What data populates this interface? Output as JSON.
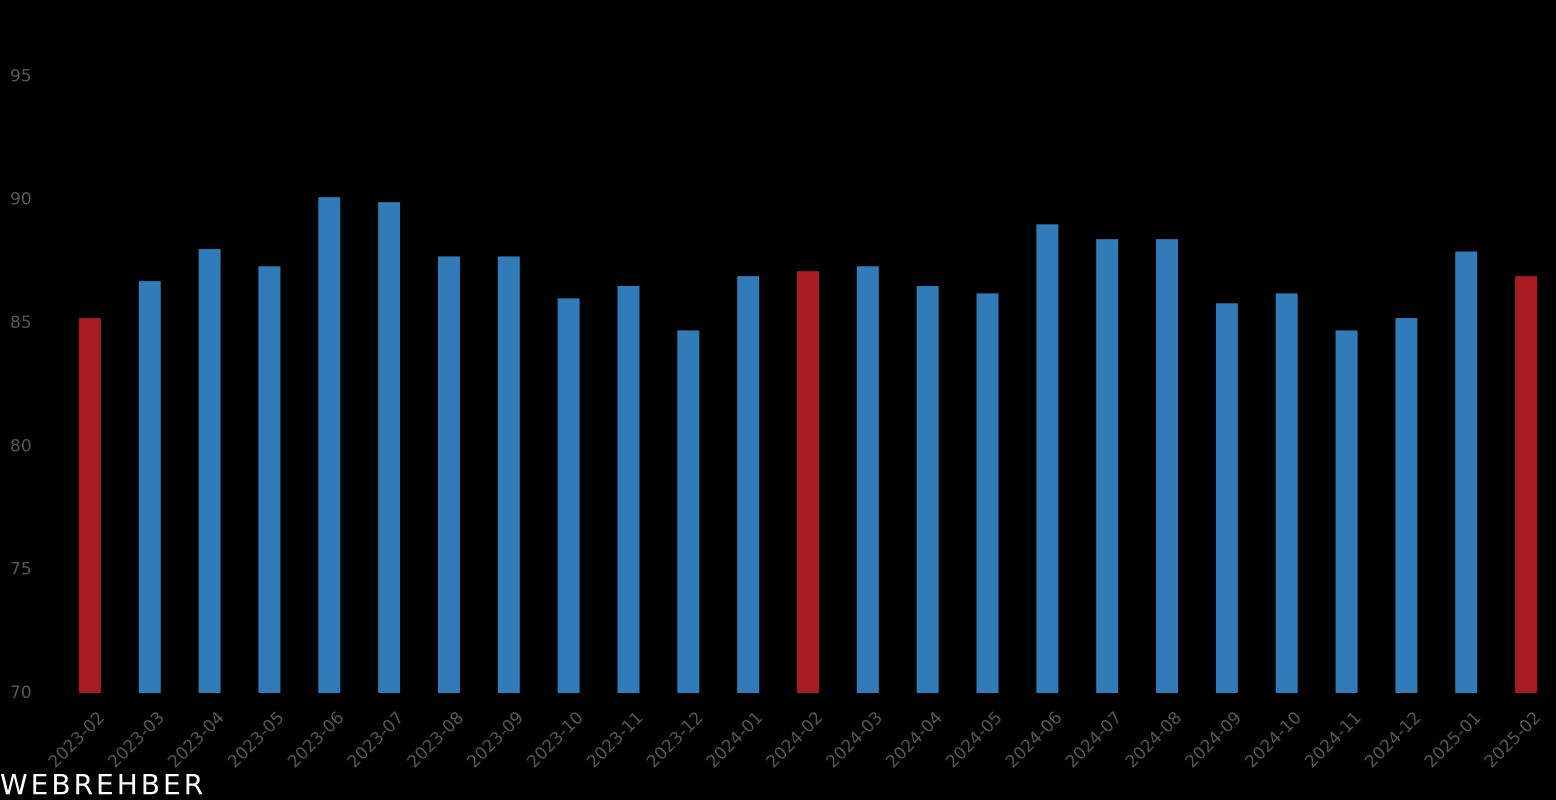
{
  "chart_data": {
    "type": "bar",
    "categories": [
      "2023-02",
      "2023-03",
      "2023-04",
      "2023-05",
      "2023-06",
      "2023-07",
      "2023-08",
      "2023-09",
      "2023-10",
      "2023-11",
      "2023-12",
      "2024-01",
      "2024-02",
      "2024-03",
      "2024-04",
      "2024-05",
      "2024-06",
      "2024-07",
      "2024-08",
      "2024-09",
      "2024-10",
      "2024-11",
      "2024-12",
      "2025-01",
      "2025-02"
    ],
    "values": [
      85.2,
      86.7,
      88.0,
      87.3,
      90.1,
      89.9,
      87.7,
      87.7,
      86.0,
      86.5,
      84.7,
      86.9,
      87.1,
      87.3,
      86.5,
      86.2,
      89.0,
      88.4,
      88.4,
      85.8,
      86.2,
      84.7,
      85.2,
      87.9,
      86.9
    ],
    "colors": [
      "#a91b23",
      "#317bb8",
      "#317bb8",
      "#317bb8",
      "#317bb8",
      "#317bb8",
      "#317bb8",
      "#317bb8",
      "#317bb8",
      "#317bb8",
      "#317bb8",
      "#317bb8",
      "#a91b23",
      "#317bb8",
      "#317bb8",
      "#317bb8",
      "#317bb8",
      "#317bb8",
      "#317bb8",
      "#317bb8",
      "#317bb8",
      "#317bb8",
      "#317bb8",
      "#317bb8",
      "#a91b23"
    ],
    "ylim": [
      70,
      97
    ],
    "yticks": [
      70,
      75,
      80,
      85,
      90,
      95
    ],
    "grid": false,
    "watermark": "WEBREHBER"
  }
}
